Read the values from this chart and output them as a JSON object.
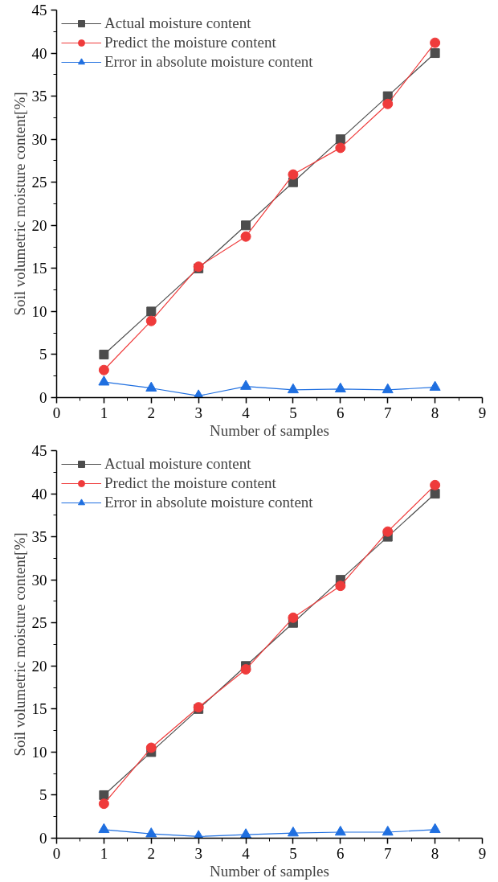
{
  "chart_data": [
    {
      "type": "line",
      "xlabel": "Number of samples",
      "ylabel": "Soil volumetric moisture content[%]",
      "x": [
        1,
        2,
        3,
        4,
        5,
        6,
        7,
        8
      ],
      "xlim": [
        0,
        9
      ],
      "xticks": [
        0,
        1,
        2,
        3,
        4,
        5,
        6,
        7,
        8,
        9
      ],
      "ylim": [
        0,
        45
      ],
      "yticks": [
        0,
        5,
        10,
        15,
        20,
        25,
        30,
        35,
        40,
        45
      ],
      "grid": false,
      "legend": "top left",
      "line_style": "solid",
      "series": [
        {
          "name": "Actual moisture content",
          "color": "#4d4d4d",
          "marker": "square",
          "values": [
            5,
            10,
            15,
            20,
            25,
            30,
            35,
            40
          ]
        },
        {
          "name": "Predict the moisture content",
          "color": "#ef3b3b",
          "marker": "circle",
          "values": [
            3.2,
            8.9,
            15.2,
            18.7,
            25.9,
            29.0,
            34.1,
            41.2
          ]
        },
        {
          "name": "Error in absolute moisture content",
          "color": "#1f6fe0",
          "marker": "triangle",
          "values": [
            1.8,
            1.1,
            0.2,
            1.3,
            0.9,
            1.0,
            0.9,
            1.2
          ]
        }
      ]
    },
    {
      "type": "line",
      "xlabel": "Number of samples",
      "ylabel": "Soil volumetric moisture content[%]",
      "x": [
        1,
        2,
        3,
        4,
        5,
        6,
        7,
        8
      ],
      "xlim": [
        0,
        9
      ],
      "xticks": [
        0,
        1,
        2,
        3,
        4,
        5,
        6,
        7,
        8,
        9
      ],
      "ylim": [
        0,
        45
      ],
      "yticks": [
        0,
        5,
        10,
        15,
        20,
        25,
        30,
        35,
        40,
        45
      ],
      "grid": false,
      "legend": "top left",
      "line_style": "solid",
      "series": [
        {
          "name": "Actual moisture content",
          "color": "#4d4d4d",
          "marker": "square",
          "values": [
            5,
            10,
            15,
            20,
            25,
            30,
            35,
            40
          ]
        },
        {
          "name": "Predict the moisture content",
          "color": "#ef3b3b",
          "marker": "circle",
          "values": [
            4.0,
            10.5,
            15.2,
            19.6,
            25.6,
            29.3,
            35.6,
            41.0
          ]
        },
        {
          "name": "Error in absolute moisture content",
          "color": "#1f6fe0",
          "marker": "triangle",
          "values": [
            1.0,
            0.5,
            0.2,
            0.4,
            0.6,
            0.7,
            0.7,
            1.0
          ]
        }
      ]
    }
  ]
}
